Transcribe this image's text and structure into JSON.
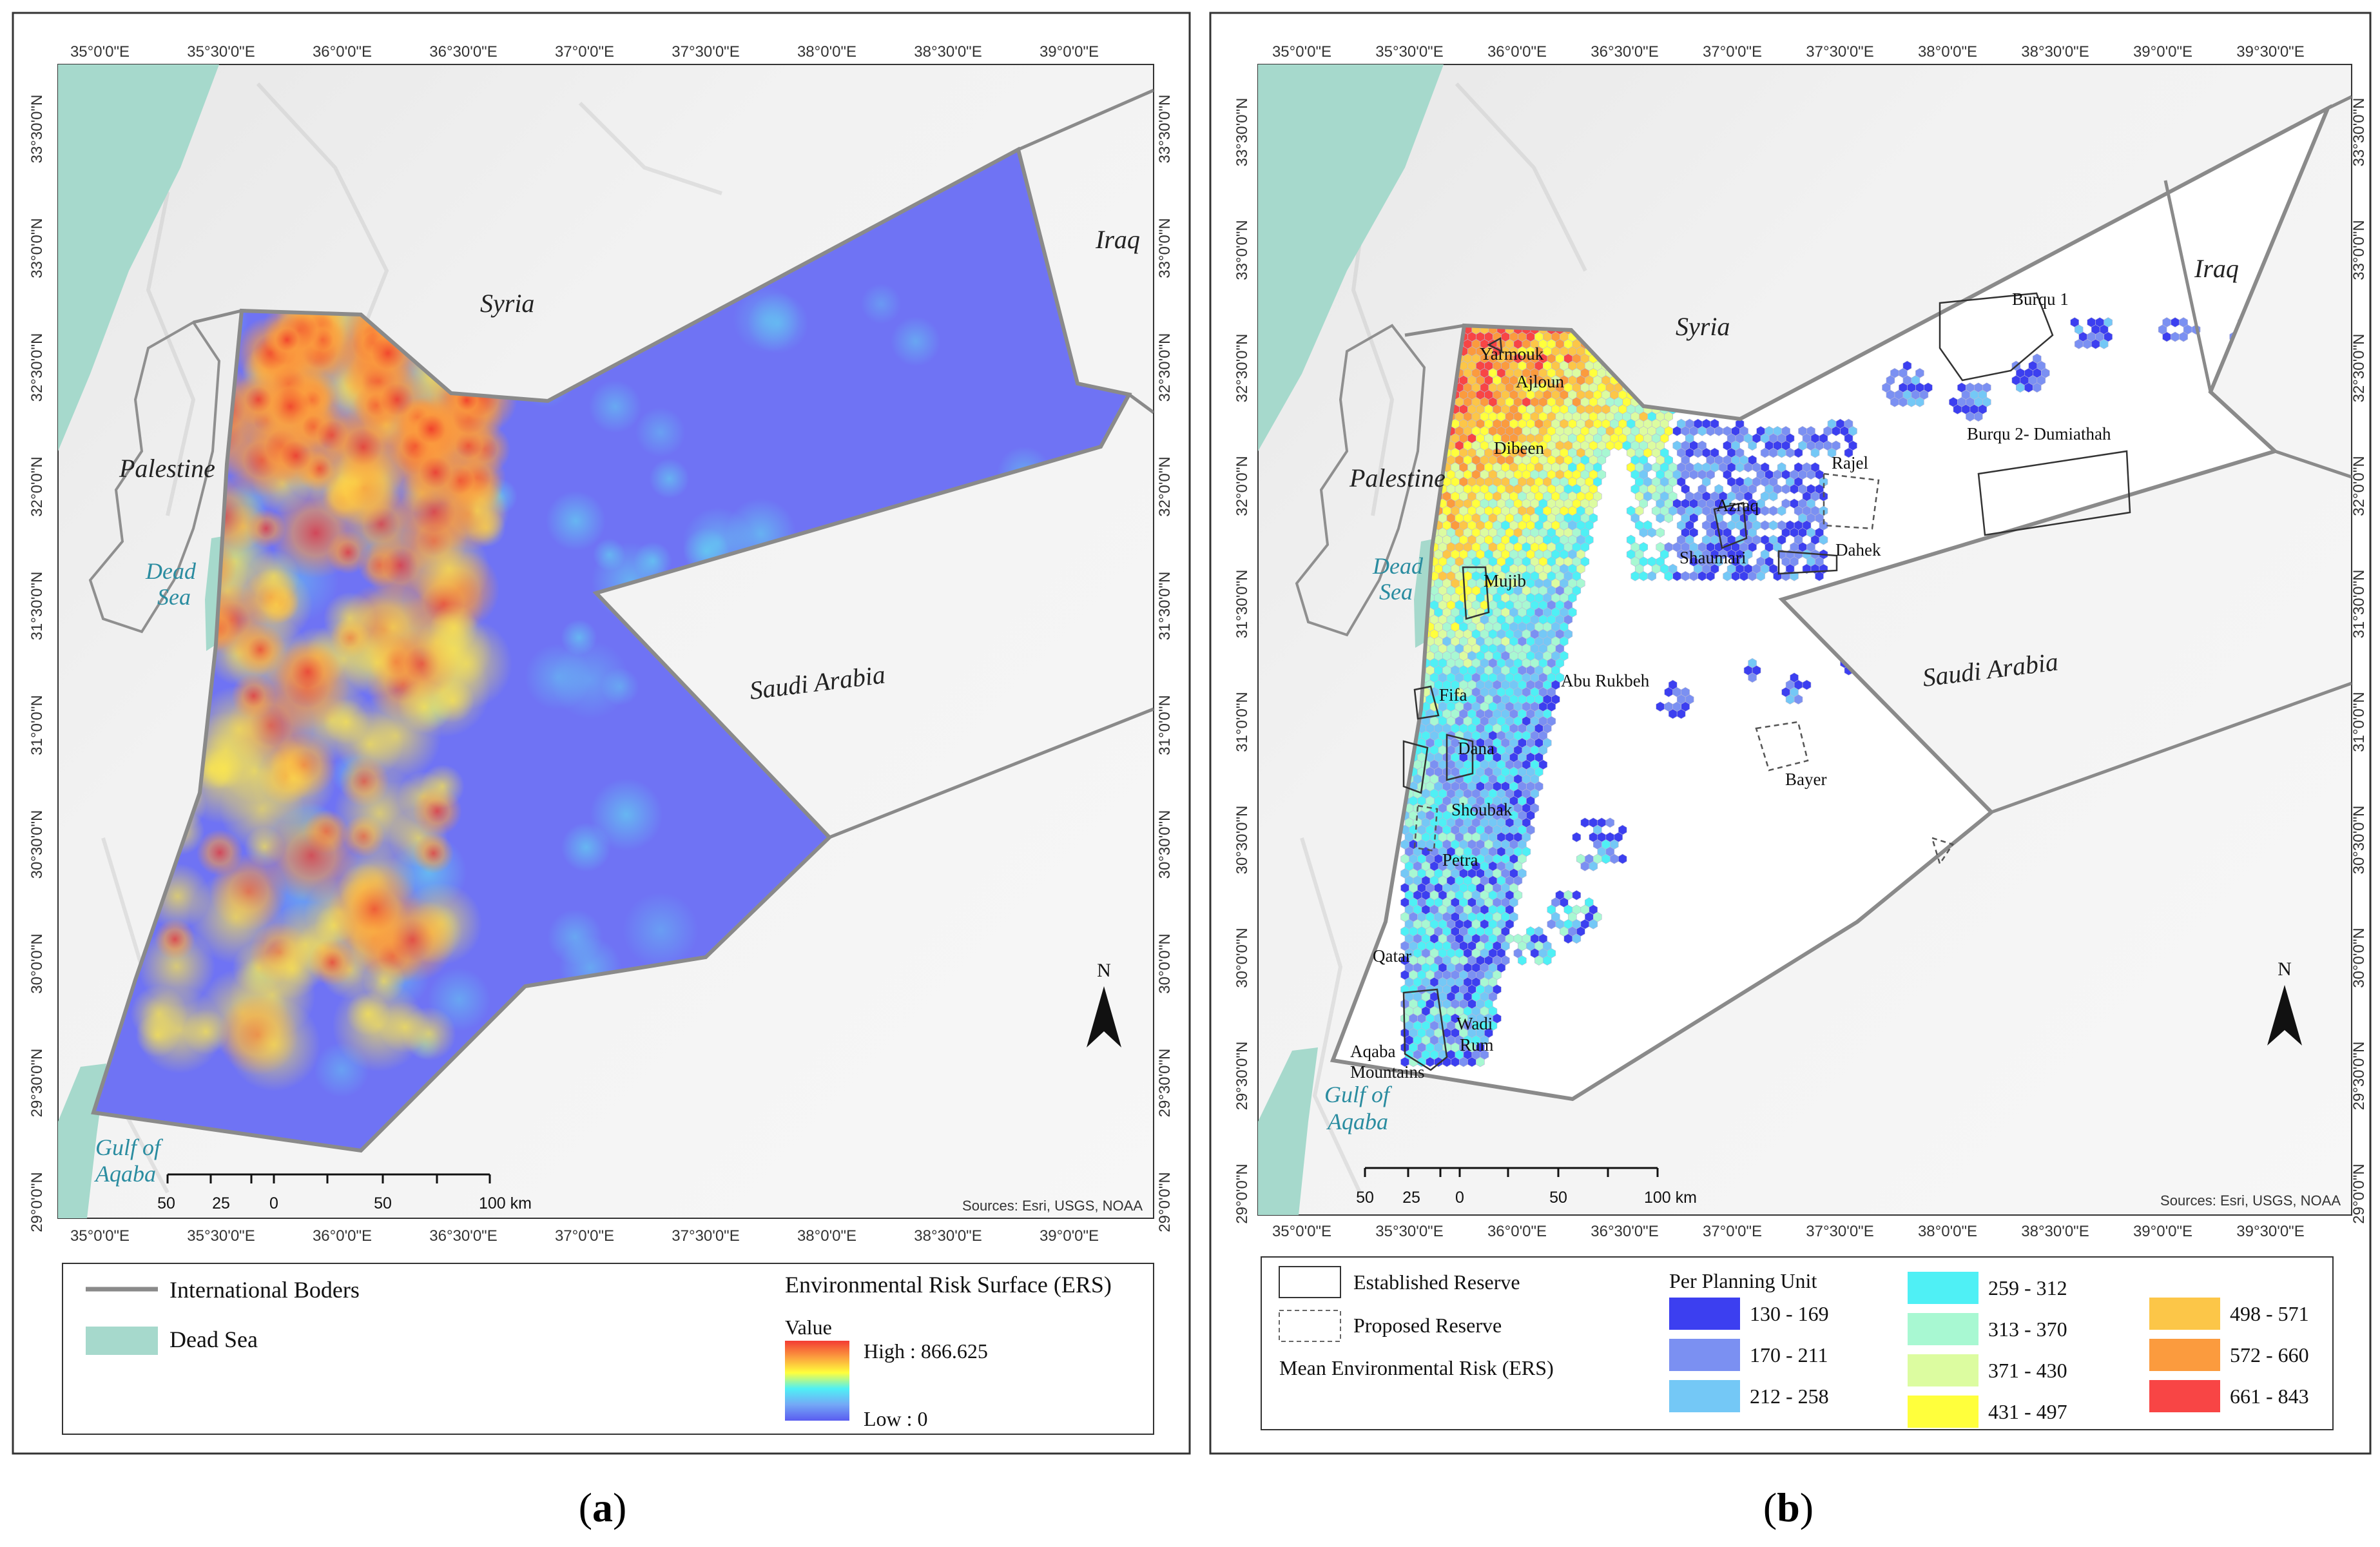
{
  "panel_a": {
    "lon_labels": [
      "35°0'0\"E",
      "35°30'0\"E",
      "36°0'0\"E",
      "36°30'0\"E",
      "37°0'0\"E",
      "37°30'0\"E",
      "38°0'0\"E",
      "38°30'0\"E",
      "39°0'0\"E"
    ],
    "lat_labels": [
      "33°30'0\"N",
      "33°0'0\"N",
      "32°30'0\"N",
      "32°0'0\"N",
      "31°30'0\"N",
      "31°0'0\"N",
      "30°30'0\"N",
      "30°0'0\"N",
      "29°30'0\"N",
      "29°0'0\"N"
    ],
    "countries": {
      "syria": "Syria",
      "iraq": "Iraq",
      "palestine": "Palestine",
      "saudi": "Saudi Arabia"
    },
    "water": {
      "dead_sea_1": "Dead",
      "dead_sea_2": "Sea",
      "aqaba_1": "Gulf of",
      "aqaba_2": "Aqaba"
    },
    "north": "N",
    "scale": {
      "labels": [
        "50",
        "25",
        "0",
        "50",
        "100 km"
      ]
    },
    "sources": "Sources: Esri, USGS, NOAA",
    "legend": {
      "borders": "International Boders",
      "dead_sea": "Dead Sea",
      "title": "Environmental Risk Surface (ERS)",
      "value": "Value",
      "high": "High : 866.625",
      "low": "Low : 0"
    },
    "caption_l": "(",
    "caption_letter": "a",
    "caption_r": ")"
  },
  "panel_b": {
    "lon_labels": [
      "35°0'0\"E",
      "35°30'0\"E",
      "36°0'0\"E",
      "36°30'0\"E",
      "37°0'0\"E",
      "37°30'0\"E",
      "38°0'0\"E",
      "38°30'0\"E",
      "39°0'0\"E",
      "39°30'0\"E"
    ],
    "lat_labels": [
      "33°30'0\"N",
      "33°0'0\"N",
      "32°30'0\"N",
      "32°0'0\"N",
      "31°30'0\"N",
      "31°0'0\"N",
      "30°30'0\"N",
      "30°0'0\"N",
      "29°30'0\"N",
      "29°0'0\"N"
    ],
    "countries": {
      "syria": "Syria",
      "iraq": "Iraq",
      "palestine": "Palestine",
      "saudi": "Saudi Arabia"
    },
    "water": {
      "dead_sea_1": "Dead",
      "dead_sea_2": "Sea",
      "aqaba_1": "Gulf of",
      "aqaba_2": "Aqaba"
    },
    "reserves": {
      "yarmouk": "Yarmouk",
      "ajloun": "Ajloun",
      "dibeen": "Dibeen",
      "azraq": "Azraq",
      "shaumari": "Shaumari",
      "rajel": "Rajel",
      "dahek": "Dahek",
      "mujib": "Mujib",
      "abu_rukbeh": "Abu Rukbeh",
      "fifa": "Fifa",
      "dana": "Dana",
      "shoubak": "Shoubak",
      "petra": "Petra",
      "bayer": "Bayer",
      "qatar": "Qatar",
      "wadi_1": "Wadi",
      "wadi_2": "Rum",
      "aqaba_mtn_1": "Aqaba",
      "aqaba_mtn_2": "Mountains",
      "burqu1": "Burqu 1",
      "burqu2": "Burqu 2- Dumiathah"
    },
    "north": "N",
    "scale": {
      "labels": [
        "50",
        "25",
        "0",
        "50",
        "100 km"
      ]
    },
    "sources": "Sources: Esri, USGS, NOAA",
    "legend": {
      "established": "Established Reserve",
      "proposed": "Proposed Reserve",
      "mean_ers": "Mean Environmental Risk (ERS)",
      "per_unit": "Per Planning Unit",
      "classes": [
        {
          "label": "130 - 169",
          "color": "#3c3ff0"
        },
        {
          "label": "170 - 211",
          "color": "#7b90f2"
        },
        {
          "label": "212 - 258",
          "color": "#74c8f6"
        },
        {
          "label": "259 - 312",
          "color": "#4ff0f5"
        },
        {
          "label": "313 - 370",
          "color": "#a8f8d2"
        },
        {
          "label": "371 - 430",
          "color": "#dcfca0"
        },
        {
          "label": "431 - 497",
          "color": "#ffff3c"
        },
        {
          "label": "498 - 571",
          "color": "#fcc648"
        },
        {
          "label": "572 - 660",
          "color": "#fb9b3e"
        },
        {
          "label": "661 - 843",
          "color": "#f84545"
        }
      ]
    },
    "caption_l": "(",
    "caption_letter": "b",
    "caption_r": ")"
  }
}
